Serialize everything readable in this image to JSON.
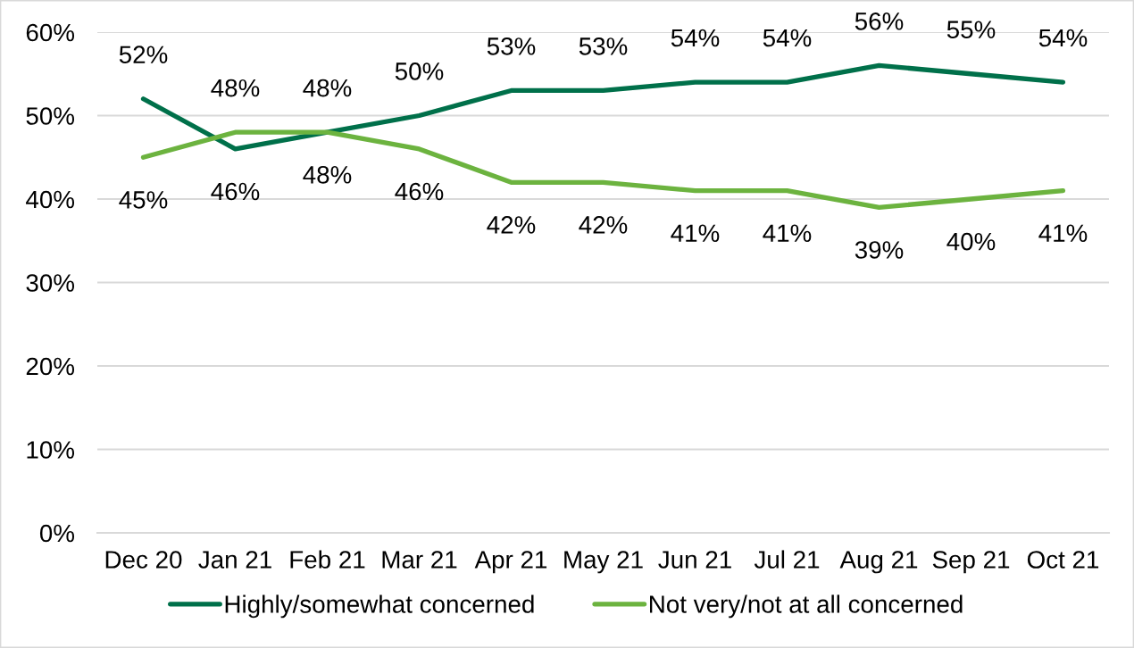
{
  "chart_data": {
    "type": "line",
    "categories": [
      "Dec 20",
      "Jan 21",
      "Feb 21",
      "Mar 21",
      "Apr 21",
      "May 21",
      "Jun 21",
      "Jul 21",
      "Aug 21",
      "Sep 21",
      "Oct 21"
    ],
    "series": [
      {
        "name": "Highly/somewhat concerned",
        "color": "#00704a",
        "values": [
          52,
          46,
          48,
          50,
          53,
          53,
          54,
          54,
          56,
          55,
          54
        ],
        "value_labels": [
          "52%",
          "46%",
          "48%",
          "50%",
          "53%",
          "53%",
          "54%",
          "54%",
          "56%",
          "55%",
          "54%"
        ]
      },
      {
        "name": "Not very/not at all concerned",
        "color": "#6cb33f",
        "values": [
          45,
          48,
          48,
          46,
          42,
          42,
          41,
          41,
          39,
          40,
          41
        ],
        "value_labels": [
          "45%",
          "48%",
          "48%",
          "46%",
          "42%",
          "42%",
          "41%",
          "41%",
          "39%",
          "40%",
          "41%"
        ]
      }
    ],
    "ylim": [
      0,
      60
    ],
    "yticks": [
      {
        "value": 0,
        "label": "0%"
      },
      {
        "value": 10,
        "label": "10%"
      },
      {
        "value": 20,
        "label": "20%"
      },
      {
        "value": 30,
        "label": "30%"
      },
      {
        "value": 40,
        "label": "40%"
      },
      {
        "value": 50,
        "label": "50%"
      },
      {
        "value": 60,
        "label": "60%"
      }
    ],
    "grid": "y",
    "legend": "bottom",
    "line_style": "solid"
  }
}
